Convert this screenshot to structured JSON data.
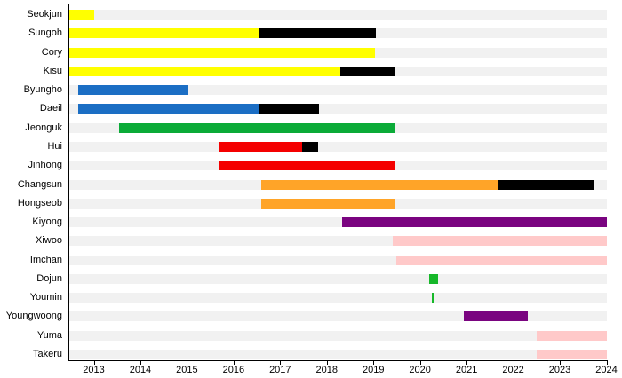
{
  "chart_data": {
    "type": "bar",
    "subtype": "horizontal-timeline-gantt",
    "title": "",
    "xlabel": "",
    "ylabel": "",
    "xlim": [
      2012.466,
      2024
    ],
    "x_ticks": [
      2013,
      2014,
      2015,
      2016,
      2017,
      2018,
      2019,
      2020,
      2021,
      2022,
      2023,
      2024
    ],
    "grid": false,
    "legend": false,
    "row_background": "#F1F1F1",
    "axis_color": "#000000",
    "palette": {
      "yellow": "#FFFF00",
      "black": "#000000",
      "blue": "#1B6EC4",
      "green": "#0BAB38",
      "red": "#F40000",
      "orange": "#FFA428",
      "purple": "#7A0480",
      "pink": "#FFC9C9",
      "green2": "#17B82A"
    },
    "rows": [
      {
        "name": "Seokjun",
        "segments": [
          {
            "from": 2012.466,
            "to": 2013.0,
            "color": "yellow"
          }
        ]
      },
      {
        "name": "Sungoh",
        "segments": [
          {
            "from": 2012.466,
            "to": 2016.53,
            "color": "yellow"
          },
          {
            "from": 2016.53,
            "to": 2019.04,
            "color": "black"
          }
        ]
      },
      {
        "name": "Cory",
        "segments": [
          {
            "from": 2012.466,
            "to": 2019.02,
            "color": "yellow"
          }
        ]
      },
      {
        "name": "Kisu",
        "segments": [
          {
            "from": 2012.466,
            "to": 2018.28,
            "color": "yellow"
          },
          {
            "from": 2018.28,
            "to": 2019.46,
            "color": "black"
          }
        ]
      },
      {
        "name": "Byungho",
        "segments": [
          {
            "from": 2012.66,
            "to": 2015.02,
            "color": "blue"
          }
        ]
      },
      {
        "name": "Daeil",
        "segments": [
          {
            "from": 2012.66,
            "to": 2016.53,
            "color": "blue"
          },
          {
            "from": 2016.53,
            "to": 2017.82,
            "color": "black"
          }
        ]
      },
      {
        "name": "Jeonguk",
        "segments": [
          {
            "from": 2013.53,
            "to": 2019.46,
            "color": "green"
          }
        ]
      },
      {
        "name": "Hui",
        "segments": [
          {
            "from": 2015.69,
            "to": 2017.46,
            "color": "red"
          },
          {
            "from": 2017.46,
            "to": 2017.8,
            "color": "black"
          }
        ]
      },
      {
        "name": "Jinhong",
        "segments": [
          {
            "from": 2015.69,
            "to": 2019.46,
            "color": "red"
          }
        ]
      },
      {
        "name": "Changsun",
        "segments": [
          {
            "from": 2016.58,
            "to": 2021.67,
            "color": "orange"
          },
          {
            "from": 2021.67,
            "to": 2023.71,
            "color": "black"
          }
        ]
      },
      {
        "name": "Hongseob",
        "segments": [
          {
            "from": 2016.58,
            "to": 2019.46,
            "color": "orange"
          }
        ]
      },
      {
        "name": "Kiyong",
        "segments": [
          {
            "from": 2018.32,
            "to": 2024.0,
            "color": "purple"
          }
        ]
      },
      {
        "name": "Xiwoo",
        "segments": [
          {
            "from": 2019.41,
            "to": 2024.0,
            "color": "pink"
          }
        ]
      },
      {
        "name": "Imchan",
        "segments": [
          {
            "from": 2019.48,
            "to": 2024.0,
            "color": "pink"
          }
        ]
      },
      {
        "name": "Dojun",
        "segments": [
          {
            "from": 2020.19,
            "to": 2020.38,
            "color": "green2"
          }
        ]
      },
      {
        "name": "Youmin",
        "segments": [
          {
            "from": 2020.25,
            "to": 2020.29,
            "color": "green2"
          }
        ]
      },
      {
        "name": "Youngwoong",
        "segments": [
          {
            "from": 2020.93,
            "to": 2022.3,
            "color": "purple"
          }
        ]
      },
      {
        "name": "Yuma",
        "segments": [
          {
            "from": 2022.49,
            "to": 2024.0,
            "color": "pink"
          }
        ]
      },
      {
        "name": "Takeru",
        "segments": [
          {
            "from": 2022.49,
            "to": 2024.0,
            "color": "pink"
          }
        ]
      }
    ]
  }
}
